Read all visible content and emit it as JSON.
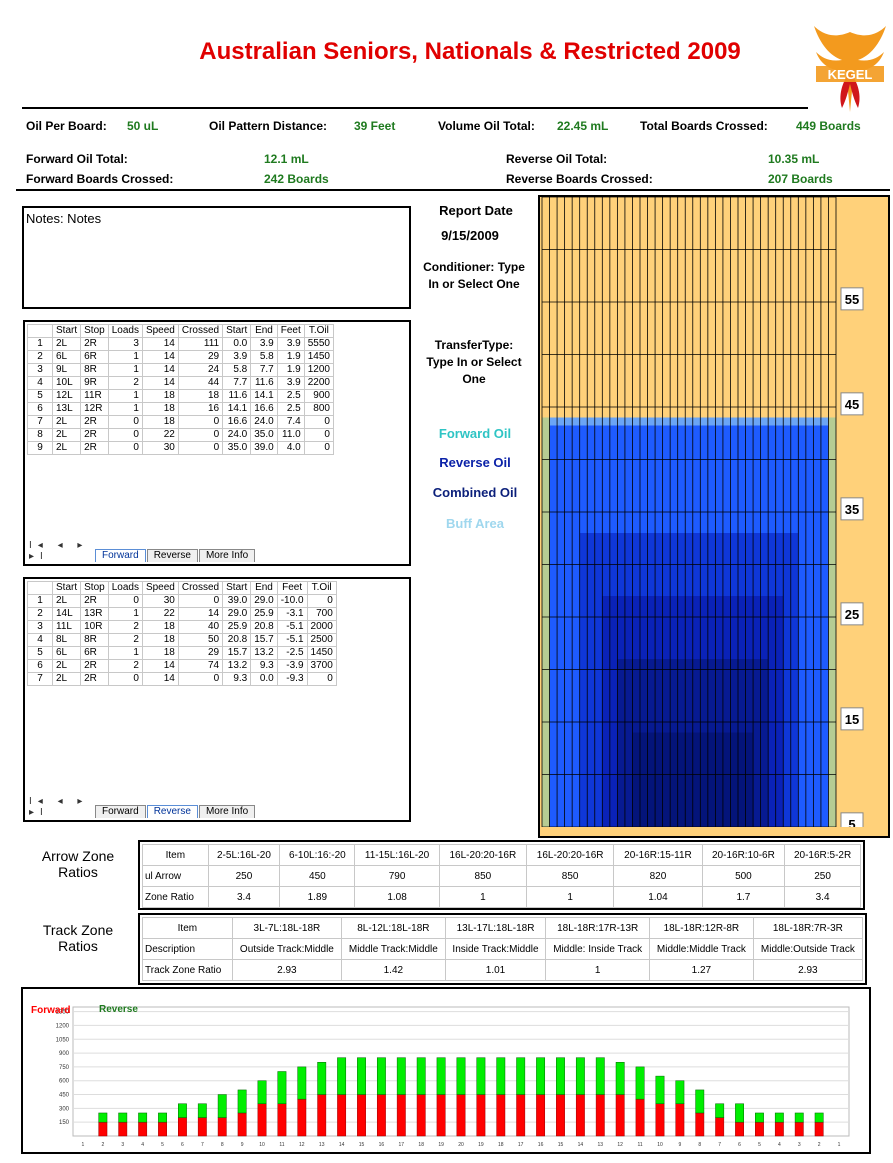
{
  "title": "Australian Seniors, Nationals & Restricted 2009",
  "logo_text": "KEGEL",
  "summary": {
    "oil_per_board_label": "Oil Per Board:",
    "oil_per_board": "50 uL",
    "pattern_distance_label": "Oil Pattern Distance:",
    "pattern_distance": "39 Feet",
    "volume_label": "Volume Oil Total:",
    "volume": "22.45 mL",
    "total_boards_label": "Total Boards Crossed:",
    "total_boards": "449 Boards",
    "forward_oil_label": "Forward Oil Total:",
    "forward_oil": "12.1 mL",
    "forward_boards_label": "Forward Boards Crossed:",
    "forward_boards": "242 Boards",
    "reverse_oil_label": "Reverse Oil Total:",
    "reverse_oil": "10.35 mL",
    "reverse_boards_label": "Reverse Boards Crossed:",
    "reverse_boards": "207 Boards"
  },
  "notes": "Notes: Notes",
  "report_date_label": "Report Date",
  "report_date": "9/15/2009",
  "conditioner": "Conditioner: Type In or Select One",
  "transfer_type": "TransferType: Type In or Select One",
  "legend": {
    "forward": "Forward Oil",
    "reverse": "Reverse Oil",
    "combined": "Combined Oil",
    "buff": "Buff Area",
    "forward_color": "#2ec4c4",
    "reverse_color": "#0b22a8",
    "combined_color": "#0b1f7a",
    "buff_color": "#9fd7ee"
  },
  "table_headers": [
    "Start",
    "Stop",
    "Loads",
    "Speed",
    "Crossed",
    "Start",
    "End",
    "Feet",
    "T.Oil"
  ],
  "forward_rows": [
    [
      "1",
      "2L",
      "2R",
      "3",
      "14",
      "111",
      "0.0",
      "3.9",
      "3.9",
      "5550"
    ],
    [
      "2",
      "6L",
      "6R",
      "1",
      "14",
      "29",
      "3.9",
      "5.8",
      "1.9",
      "1450"
    ],
    [
      "3",
      "9L",
      "8R",
      "1",
      "14",
      "24",
      "5.8",
      "7.7",
      "1.9",
      "1200"
    ],
    [
      "4",
      "10L",
      "9R",
      "2",
      "14",
      "44",
      "7.7",
      "11.6",
      "3.9",
      "2200"
    ],
    [
      "5",
      "12L",
      "11R",
      "1",
      "18",
      "18",
      "11.6",
      "14.1",
      "2.5",
      "900"
    ],
    [
      "6",
      "13L",
      "12R",
      "1",
      "18",
      "16",
      "14.1",
      "16.6",
      "2.5",
      "800"
    ],
    [
      "7",
      "2L",
      "2R",
      "0",
      "18",
      "0",
      "16.6",
      "24.0",
      "7.4",
      "0"
    ],
    [
      "8",
      "2L",
      "2R",
      "0",
      "22",
      "0",
      "24.0",
      "35.0",
      "11.0",
      "0"
    ],
    [
      "9",
      "2L",
      "2R",
      "0",
      "30",
      "0",
      "35.0",
      "39.0",
      "4.0",
      "0"
    ]
  ],
  "reverse_rows": [
    [
      "1",
      "2L",
      "2R",
      "0",
      "30",
      "0",
      "39.0",
      "29.0",
      "-10.0",
      "0"
    ],
    [
      "2",
      "14L",
      "13R",
      "1",
      "22",
      "14",
      "29.0",
      "25.9",
      "-3.1",
      "700"
    ],
    [
      "3",
      "11L",
      "10R",
      "2",
      "18",
      "40",
      "25.9",
      "20.8",
      "-5.1",
      "2000"
    ],
    [
      "4",
      "8L",
      "8R",
      "2",
      "18",
      "50",
      "20.8",
      "15.7",
      "-5.1",
      "2500"
    ],
    [
      "5",
      "6L",
      "6R",
      "1",
      "18",
      "29",
      "15.7",
      "13.2",
      "-2.5",
      "1450"
    ],
    [
      "6",
      "2L",
      "2R",
      "2",
      "14",
      "74",
      "13.2",
      "9.3",
      "-3.9",
      "3700"
    ],
    [
      "7",
      "2L",
      "2R",
      "0",
      "14",
      "0",
      "9.3",
      "0.0",
      "-9.3",
      "0"
    ]
  ],
  "tabs": {
    "forward": "Forward",
    "reverse": "Reverse",
    "more": "More Info",
    "nav": "I◂ ◂ ▸ ▸I"
  },
  "arrow_zone": {
    "label_line1": "Arrow Zone",
    "label_line2": "Ratios",
    "headers": [
      "Item",
      "2-5L:16L-20",
      "6-10L:16:-20",
      "11-15L:16L-20",
      "16L-20:20-16R",
      "16L-20:20-16R",
      "20-16R:15-11R",
      "20-16R:10-6R",
      "20-16R:5-2R"
    ],
    "row1": [
      "ul Arrow",
      "250",
      "450",
      "790",
      "850",
      "850",
      "820",
      "500",
      "250"
    ],
    "row2": [
      "Zone Ratio",
      "3.4",
      "1.89",
      "1.08",
      "1",
      "1",
      "1.04",
      "1.7",
      "3.4"
    ]
  },
  "track_zone": {
    "label_line1": "Track Zone",
    "label_line2": "Ratios",
    "headers": [
      "Item",
      "3L-7L:18L-18R",
      "8L-12L:18L-18R",
      "13L-17L:18L-18R",
      "18L-18R:17R-13R",
      "18L-18R:12R-8R",
      "18L-18R:7R-3R"
    ],
    "row1": [
      "Description",
      "Outside Track:Middle",
      "Middle Track:Middle",
      "Inside Track:Middle",
      "Middle: Inside Track",
      "Middle:Middle Track",
      "Middle:Outside Track"
    ],
    "row2": [
      "Track Zone Ratio",
      "2.93",
      "1.42",
      "1.01",
      "1",
      "1.27",
      "2.93"
    ]
  },
  "lane_chart": {
    "distance_labels": [
      "55",
      "45",
      "35",
      "25",
      "15",
      "5"
    ],
    "lane_color": "#ffd17a",
    "board_max_feet": [
      0,
      0,
      39,
      39,
      39,
      39,
      39,
      39,
      39,
      39,
      39,
      39,
      39,
      39,
      39,
      39,
      39,
      39,
      39,
      39,
      39,
      39,
      39,
      39,
      39,
      39,
      39,
      39,
      39,
      39,
      39,
      39,
      39,
      39,
      39,
      39,
      39,
      39,
      39,
      39,
      0
    ]
  },
  "chart_data": {
    "type": "bar",
    "legend": [
      "Forward",
      "Reverse"
    ],
    "forward_color": "#ff0000",
    "reverse_color": "#00ee00",
    "y_ticks": [
      "150",
      "300",
      "450",
      "600",
      "750",
      "900",
      "1050",
      "1200",
      "1350"
    ],
    "x_labels": [
      "1",
      "2",
      "3",
      "4",
      "5",
      "6",
      "7",
      "8",
      "9",
      "10",
      "11",
      "12",
      "13",
      "14",
      "15",
      "16",
      "17",
      "18",
      "19",
      "20",
      "19",
      "18",
      "17",
      "16",
      "15",
      "14",
      "13",
      "12",
      "11",
      "10",
      "9",
      "8",
      "7",
      "6",
      "5",
      "4",
      "3",
      "2",
      "1"
    ],
    "ylim": [
      0,
      1400
    ],
    "forward": [
      0,
      150,
      150,
      150,
      150,
      200,
      200,
      200,
      250,
      350,
      350,
      400,
      450,
      450,
      450,
      450,
      450,
      450,
      450,
      450,
      450,
      450,
      450,
      450,
      450,
      450,
      450,
      450,
      400,
      350,
      350,
      250,
      200,
      150,
      150,
      150,
      150,
      150,
      0
    ],
    "reverse": [
      0,
      100,
      100,
      100,
      100,
      150,
      150,
      250,
      250,
      250,
      350,
      350,
      350,
      400,
      400,
      400,
      400,
      400,
      400,
      400,
      400,
      400,
      400,
      400,
      400,
      400,
      400,
      350,
      350,
      300,
      250,
      250,
      150,
      200,
      100,
      100,
      100,
      100,
      0
    ]
  }
}
